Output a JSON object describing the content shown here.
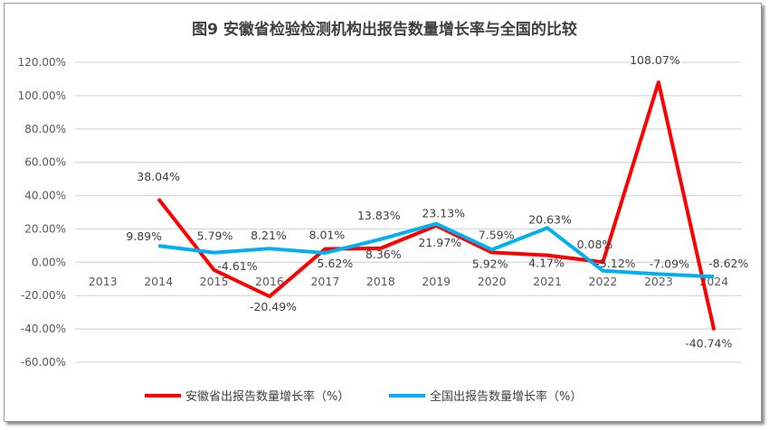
{
  "chart_data": {
    "type": "line",
    "title": "图9 安徽省检验检测机构出报告数量增长率与全国的比较",
    "categories": [
      "2013",
      "2014",
      "2015",
      "2016",
      "2017",
      "2018",
      "2019",
      "2020",
      "2021",
      "2022",
      "2023",
      "2024"
    ],
    "ylim": [
      -60,
      120
    ],
    "yticks": [
      120,
      100,
      80,
      60,
      40,
      20,
      0,
      -20,
      -40,
      -60
    ],
    "ytick_labels": [
      "120.00%",
      "100.00%",
      "80.00%",
      "60.00%",
      "40.00%",
      "20.00%",
      "0.00%",
      "-20.00%",
      "-40.00%",
      "-60.00%"
    ],
    "grid": true,
    "legend": "bottom",
    "series": [
      {
        "name": "安徽省出报告数量增长率（%）",
        "color": "#ff0000",
        "values": [
          null,
          38.04,
          -4.61,
          -20.49,
          8.01,
          8.36,
          21.97,
          5.92,
          4.17,
          0.08,
          108.07,
          -40.74
        ],
        "labels": [
          "",
          "38.04%",
          "-4.61%",
          "-20.49%",
          "8.01%",
          "8.36%",
          "21.97%",
          "5.92%",
          "4.17%",
          "0.08%",
          "108.07%",
          "-40.74%"
        ]
      },
      {
        "name": "全国出报告数量增长率（%）",
        "color": "#00b0f0",
        "values": [
          null,
          9.89,
          5.79,
          8.21,
          5.62,
          13.83,
          23.13,
          7.59,
          20.63,
          -5.12,
          -7.09,
          -8.62
        ],
        "labels": [
          "",
          "9.89%",
          "5.79%",
          "8.21%",
          "5.62%",
          "13.83%",
          "23.13%",
          "7.59%",
          "20.63%",
          "-5.12%",
          "-7.09%",
          "-8.62%"
        ]
      }
    ]
  }
}
